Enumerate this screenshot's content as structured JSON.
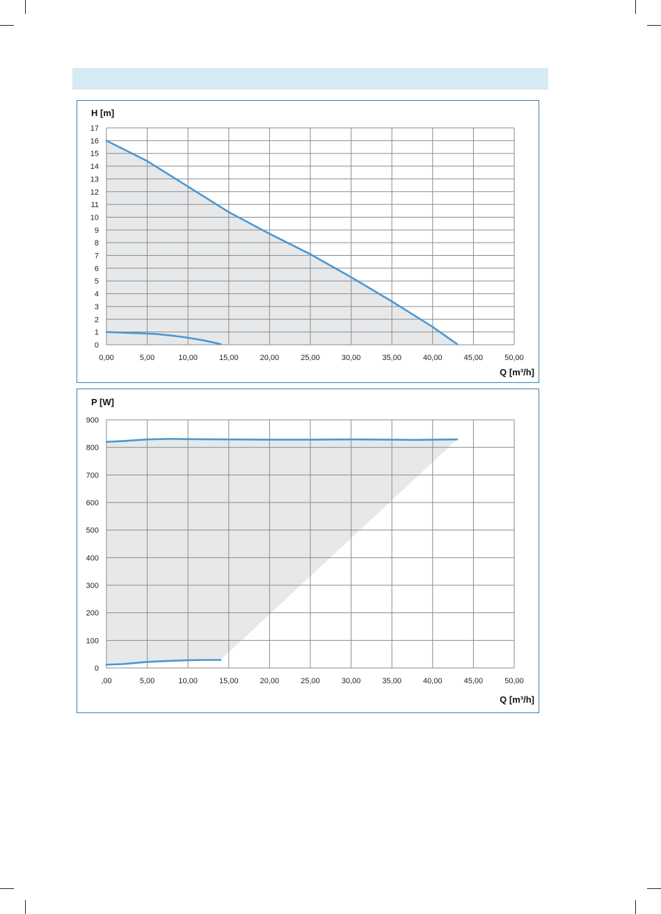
{
  "header": {
    "title": ""
  },
  "chart_data": [
    {
      "type": "line",
      "ylabel": "H [m]",
      "xlabel": "Q [m³/h]",
      "xlim": [
        0,
        50
      ],
      "ylim": [
        0,
        17
      ],
      "x_ticks": [
        "0,00",
        "5,00",
        "10,00",
        "15,00",
        "20,00",
        "25,00",
        "30,00",
        "35,00",
        "40,00",
        "45,00",
        "50,00"
      ],
      "y_ticks": [
        "0",
        "1",
        "2",
        "3",
        "4",
        "5",
        "6",
        "7",
        "8",
        "9",
        "10",
        "11",
        "12",
        "13",
        "14",
        "15",
        "16",
        "17"
      ],
      "grid": true,
      "shaded_area": true,
      "series": [
        {
          "x": [
            0,
            5,
            10,
            15,
            20,
            25,
            30,
            35,
            40,
            43
          ],
          "y": [
            16,
            14.4,
            12.4,
            10.4,
            8.7,
            7.1,
            5.3,
            3.4,
            1.4,
            0.05
          ]
        },
        {
          "x": [
            0,
            2,
            4,
            6,
            8,
            10,
            12,
            14
          ],
          "y": [
            1.0,
            0.95,
            0.9,
            0.85,
            0.72,
            0.55,
            0.33,
            0.05
          ]
        }
      ],
      "colors": {
        "line": "#4a97d2",
        "fill": "#e6e8ea",
        "grid": "#8a8a8a"
      }
    },
    {
      "type": "line",
      "ylabel": "P [W]",
      "xlabel": "Q [m³/h]",
      "xlim": [
        0,
        50
      ],
      "ylim": [
        0,
        900
      ],
      "x_ticks": [
        ",00",
        "5,00",
        "10,00",
        "15,00",
        "20,00",
        "25,00",
        "30,00",
        "35,00",
        "40,00",
        "45,00",
        "50,00"
      ],
      "y_ticks": [
        "0",
        "100",
        "200",
        "300",
        "400",
        "500",
        "600",
        "700",
        "800",
        "900"
      ],
      "grid": true,
      "shaded_area": true,
      "series": [
        {
          "x": [
            0,
            2,
            5,
            8,
            10,
            15,
            20,
            25,
            30,
            35,
            38,
            40,
            43
          ],
          "y": [
            820,
            823,
            829,
            831,
            830,
            829,
            828,
            828,
            829,
            828,
            827,
            828,
            829
          ]
        },
        {
          "x": [
            0,
            2,
            5,
            8,
            10,
            12,
            14
          ],
          "y": [
            12,
            14,
            22,
            26,
            28,
            29,
            29
          ]
        }
      ],
      "colors": {
        "line": "#4a97d2",
        "fill": "#e6e8ea",
        "grid": "#8a8a8a"
      }
    }
  ]
}
